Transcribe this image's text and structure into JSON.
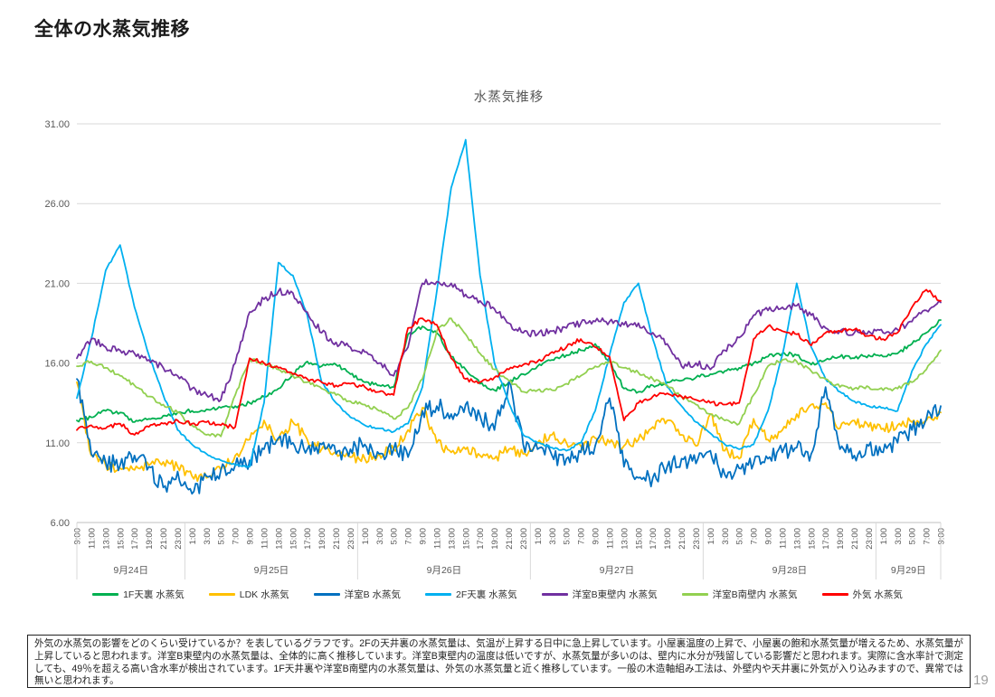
{
  "slide": {
    "title": "全体の水蒸気推移",
    "page_number": "19"
  },
  "note": {
    "text": "外気の水蒸気の影響をどのくらい受けているか？を表しているグラフです。2Fの天井裏の水蒸気量は、気温が上昇する日中に急上昇しています。小屋裏温度の上昇で、小屋裏の飽和水蒸気量が増えるため、水蒸気量が上昇していると思われます。洋室B東壁内の水蒸気量は、全体的に高く推移しています。洋室B東壁内の温度は低いですが、水蒸気量が多いのは、壁内に水分が残留している影響だと思われます。実際に含水率計で測定しても、49％を超える高い含水率が検出されています。1F天井裏や洋室B南壁内の水蒸気量は、外気の水蒸気量と近く推移しています。一般の木造軸組み工法は、外壁内や天井裏に外気が入り込みますので、異常では無いと思われます。"
  },
  "chart_data": {
    "type": "line",
    "title": "水蒸気推移",
    "grid": "horizontal",
    "legend_position": "bottom",
    "y_axis": {
      "min": 6,
      "max": 31,
      "tick_interval": 5,
      "tick_labels": [
        "31.00",
        "26.00",
        "21.00",
        "16.00",
        "11.00",
        "6.00"
      ]
    },
    "x_axis": {
      "total_hours": 120,
      "x_step_hours": 2,
      "tick_labels": [
        "9:00",
        "11:00",
        "13:00",
        "15:00",
        "17:00",
        "19:00",
        "21:00",
        "23:00",
        "1:00",
        "3:00",
        "5:00",
        "7:00",
        "9:00",
        "11:00",
        "13:00",
        "15:00",
        "17:00",
        "19:00",
        "21:00",
        "23:00",
        "1:00",
        "3:00",
        "5:00",
        "7:00",
        "9:00",
        "11:00",
        "13:00",
        "15:00",
        "17:00",
        "19:00",
        "21:00",
        "23:00",
        "1:00",
        "3:00",
        "5:00",
        "7:00",
        "9:00",
        "11:00",
        "13:00",
        "15:00",
        "17:00",
        "19:00",
        "21:00",
        "23:00",
        "1:00",
        "3:00",
        "5:00",
        "7:00",
        "9:00",
        "11:00",
        "13:00",
        "15:00",
        "17:00",
        "19:00",
        "21:00",
        "23:00",
        "1:00",
        "3:00",
        "5:00",
        "7:00",
        "9:00"
      ],
      "day_boundaries_hours": [
        15,
        39,
        63,
        87,
        111
      ],
      "days": [
        {
          "label": "9月24日",
          "center_hour": 7.5
        },
        {
          "label": "9月25日",
          "center_hour": 27
        },
        {
          "label": "9月26日",
          "center_hour": 51
        },
        {
          "label": "9月27日",
          "center_hour": 75
        },
        {
          "label": "9月28日",
          "center_hour": 99
        },
        {
          "label": "9月29日",
          "center_hour": 115.5
        }
      ]
    },
    "series": [
      {
        "name": "1F天裏 水蒸気",
        "color": "#00B050",
        "noise": 0.13,
        "values": [
          12.4,
          12.6,
          13.0,
          12.9,
          12.3,
          12.5,
          12.7,
          12.9,
          13.0,
          13.1,
          13.2,
          13.3,
          13.5,
          13.9,
          14.4,
          15.3,
          16.1,
          15.8,
          15.9,
          15.3,
          14.8,
          14.6,
          14.5,
          17.8,
          18.3,
          17.9,
          16.4,
          15.6,
          14.7,
          14.3,
          14.8,
          15.3,
          15.8,
          16.2,
          16.5,
          16.8,
          17.2,
          16.1,
          14.4,
          14.2,
          14.6,
          14.8,
          14.9,
          15.1,
          15.3,
          15.5,
          15.7,
          16.0,
          16.4,
          16.6,
          16.5,
          15.9,
          16.2,
          16.4,
          16.3,
          16.5,
          16.4,
          16.6,
          17.2,
          17.9,
          18.7
        ]
      },
      {
        "name": "LDK 水蒸気",
        "color": "#FFC000",
        "noise": 0.32,
        "values": [
          14.8,
          10.2,
          9.6,
          9.4,
          9.3,
          9.6,
          9.8,
          9.5,
          8.9,
          8.8,
          9.3,
          10.2,
          11.2,
          12.4,
          11.2,
          12.3,
          11.2,
          10.6,
          10.4,
          10.1,
          10.0,
          10.3,
          10.6,
          11.8,
          13.2,
          11.0,
          10.4,
          10.6,
          10.2,
          10.0,
          10.6,
          10.3,
          11.0,
          11.5,
          11.0,
          10.8,
          11.3,
          11.0,
          10.8,
          11.2,
          12.0,
          12.4,
          11.5,
          10.8,
          12.8,
          10.5,
          10.0,
          12.5,
          11.2,
          11.8,
          12.8,
          13.4,
          13.5,
          11.9,
          12.4,
          12.0,
          11.9,
          12.1,
          12.3,
          12.4,
          12.9
        ]
      },
      {
        "name": "洋室B 水蒸気",
        "color": "#0070C0",
        "noise": 0.55,
        "values": [
          15.0,
          10.3,
          9.8,
          9.6,
          10.2,
          9.5,
          8.2,
          9.2,
          7.8,
          8.9,
          9.3,
          9.6,
          9.9,
          10.6,
          11.3,
          11.0,
          10.6,
          10.9,
          10.3,
          10.6,
          10.9,
          10.3,
          10.6,
          10.1,
          13.0,
          13.3,
          12.8,
          13.4,
          12.7,
          11.8,
          14.8,
          10.9,
          10.6,
          10.2,
          10.0,
          10.4,
          10.8,
          13.8,
          9.5,
          8.8,
          8.8,
          9.5,
          10.0,
          9.7,
          10.5,
          9.0,
          9.4,
          9.7,
          10.0,
          10.4,
          10.7,
          10.3,
          14.5,
          10.6,
          10.2,
          10.8,
          10.4,
          11.0,
          11.8,
          12.5,
          13.3
        ]
      },
      {
        "name": "2F天裏 水蒸気",
        "color": "#00B0F0",
        "noise": 0.07,
        "values": [
          13.8,
          17.5,
          21.8,
          23.4,
          19.5,
          16.5,
          14.0,
          11.8,
          10.9,
          10.3,
          9.9,
          9.6,
          9.5,
          13.5,
          22.3,
          21.5,
          19.0,
          14.8,
          13.5,
          12.6,
          12.1,
          11.9,
          11.7,
          12.2,
          14.5,
          20.5,
          27.0,
          30.0,
          21.5,
          16.0,
          13.5,
          11.5,
          11.0,
          10.7,
          10.5,
          11.0,
          13.0,
          16.5,
          19.8,
          21.0,
          17.5,
          14.5,
          13.3,
          12.3,
          11.6,
          10.9,
          10.6,
          10.9,
          13.0,
          16.5,
          21.0,
          17.0,
          15.0,
          14.2,
          13.6,
          13.3,
          13.2,
          13.0,
          15.5,
          17.2,
          18.4
        ]
      },
      {
        "name": "洋室B東壁内 水蒸気",
        "color": "#7030A0",
        "noise": 0.22,
        "values": [
          16.3,
          17.5,
          17.0,
          16.8,
          16.6,
          16.2,
          15.7,
          15.2,
          14.4,
          14.0,
          13.7,
          16.0,
          19.2,
          20.0,
          20.5,
          20.4,
          19.2,
          17.9,
          17.3,
          17.0,
          16.7,
          16.0,
          15.2,
          17.0,
          21.0,
          21.1,
          21.0,
          20.3,
          19.9,
          19.4,
          18.5,
          17.9,
          17.8,
          18.0,
          18.2,
          18.5,
          18.6,
          18.6,
          18.4,
          18.5,
          17.9,
          17.2,
          15.8,
          16.0,
          15.6,
          16.8,
          17.6,
          19.0,
          19.3,
          19.5,
          19.6,
          19.0,
          18.2,
          18.0,
          17.9,
          18.0,
          17.9,
          18.1,
          18.6,
          19.3,
          19.8
        ]
      },
      {
        "name": "洋室B南壁内 水蒸気",
        "color": "#92D050",
        "noise": 0.12,
        "values": [
          15.8,
          16.1,
          15.7,
          15.2,
          14.6,
          13.9,
          13.4,
          12.9,
          12.1,
          11.5,
          11.4,
          14.0,
          16.2,
          16.0,
          15.6,
          15.2,
          14.8,
          14.4,
          14.0,
          13.6,
          13.4,
          13.0,
          12.5,
          13.2,
          15.0,
          18.0,
          18.8,
          17.8,
          16.6,
          15.6,
          14.9,
          14.2,
          14.3,
          14.3,
          14.7,
          15.2,
          15.8,
          16.1,
          15.7,
          15.4,
          15.0,
          14.6,
          13.9,
          13.4,
          12.8,
          12.4,
          12.2,
          14.0,
          15.8,
          16.2,
          16.1,
          15.5,
          15.0,
          14.5,
          14.4,
          14.5,
          14.3,
          14.4,
          14.8,
          15.6,
          16.8
        ]
      },
      {
        "name": "外気 水蒸気",
        "color": "#FF0000",
        "noise": 0.13,
        "values": [
          11.8,
          12.1,
          11.9,
          12.2,
          11.5,
          12.0,
          12.2,
          12.4,
          12.2,
          12.3,
          12.1,
          12.0,
          16.3,
          16.0,
          15.7,
          15.3,
          15.0,
          14.8,
          14.6,
          14.7,
          14.5,
          14.2,
          14.0,
          18.2,
          18.8,
          18.4,
          16.3,
          15.0,
          14.8,
          15.1,
          15.6,
          15.9,
          16.1,
          16.7,
          17.0,
          17.5,
          17.0,
          16.4,
          12.4,
          13.5,
          13.9,
          14.1,
          13.9,
          13.7,
          13.5,
          13.4,
          13.5,
          17.5,
          18.3,
          18.0,
          17.8,
          17.1,
          17.9,
          18.0,
          18.1,
          17.7,
          17.5,
          17.9,
          19.5,
          20.6,
          19.9
        ]
      }
    ]
  }
}
